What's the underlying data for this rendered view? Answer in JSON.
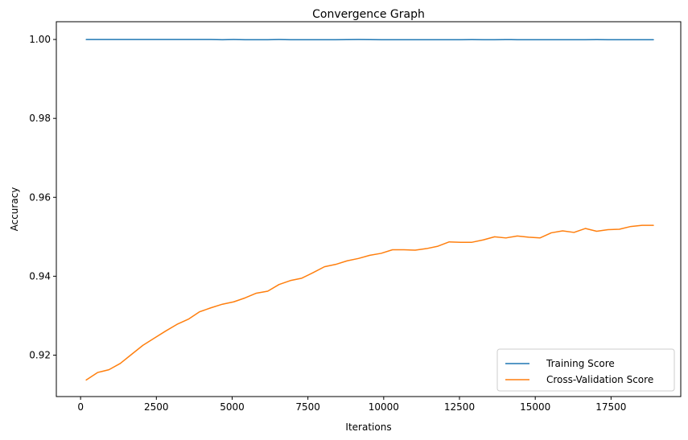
{
  "chart_data": {
    "type": "line",
    "title": "Convergence Graph",
    "xlabel": "Iterations",
    "ylabel": "Accuracy",
    "xlim": [
      -800,
      19800
    ],
    "ylim": [
      0.9095,
      1.0045
    ],
    "xticks": [
      0,
      2500,
      5000,
      7500,
      10000,
      12500,
      15000,
      17500
    ],
    "yticks": [
      0.92,
      0.94,
      0.96,
      0.98,
      1.0
    ],
    "xtick_labels": [
      "0",
      "2500",
      "5000",
      "7500",
      "10000",
      "12500",
      "15000",
      "17500"
    ],
    "ytick_labels": [
      "0.92",
      "0.94",
      "0.96",
      "0.98",
      "1.00"
    ],
    "grid": false,
    "legend_position": "bottom-right",
    "x": [
      187,
      561,
      935,
      1310,
      1684,
      2058,
      2432,
      2806,
      3181,
      3555,
      3929,
      4303,
      4677,
      5052,
      5426,
      5800,
      6174,
      6548,
      6923,
      7297,
      7671,
      8045,
      8419,
      8794,
      9168,
      9542,
      9916,
      10290,
      10665,
      11039,
      11413,
      11787,
      12161,
      12536,
      12910,
      13284,
      13658,
      14032,
      14407,
      14781,
      15155,
      15529,
      15903,
      16278,
      16652,
      17026,
      17400,
      17774,
      18149,
      18523,
      18897
    ],
    "series": [
      {
        "name": "Training Score",
        "color": "#1f77b4",
        "values": [
          1.0,
          1.0,
          1.0,
          1.0,
          1.0,
          1.0,
          1.0,
          1.0,
          1.0,
          1.0,
          1.0,
          1.0,
          0.99995,
          0.99998,
          0.99995,
          0.99995,
          0.99995,
          0.99998,
          0.99995,
          0.99995,
          0.99995,
          0.99995,
          0.99995,
          0.99996,
          0.99998,
          0.99996,
          0.99995,
          0.99995,
          0.99995,
          0.99995,
          0.99995,
          0.99995,
          0.99995,
          0.99995,
          0.99996,
          0.99995,
          0.99995,
          0.99996,
          0.99995,
          0.99995,
          0.99995,
          0.99995,
          0.99995,
          0.99995,
          0.99995,
          0.99996,
          0.99995,
          0.99995,
          0.99994,
          0.99995,
          0.99995
        ]
      },
      {
        "name": "Cross-Validation Score",
        "color": "#ff7f0e",
        "values": [
          0.9137,
          0.9156,
          0.9163,
          0.9179,
          0.9202,
          0.9225,
          0.9243,
          0.9261,
          0.9278,
          0.9291,
          0.931,
          0.932,
          0.9329,
          0.9335,
          0.9345,
          0.9357,
          0.9362,
          0.9379,
          0.9389,
          0.9395,
          0.9409,
          0.9424,
          0.943,
          0.9439,
          0.9445,
          0.9453,
          0.9458,
          0.9467,
          0.9467,
          0.9466,
          0.947,
          0.9476,
          0.9487,
          0.9486,
          0.9486,
          0.9492,
          0.95,
          0.9497,
          0.9502,
          0.9499,
          0.9497,
          0.951,
          0.9515,
          0.9511,
          0.9521,
          0.9514,
          0.9518,
          0.9519,
          0.9526,
          0.9529,
          0.9529
        ]
      }
    ]
  }
}
